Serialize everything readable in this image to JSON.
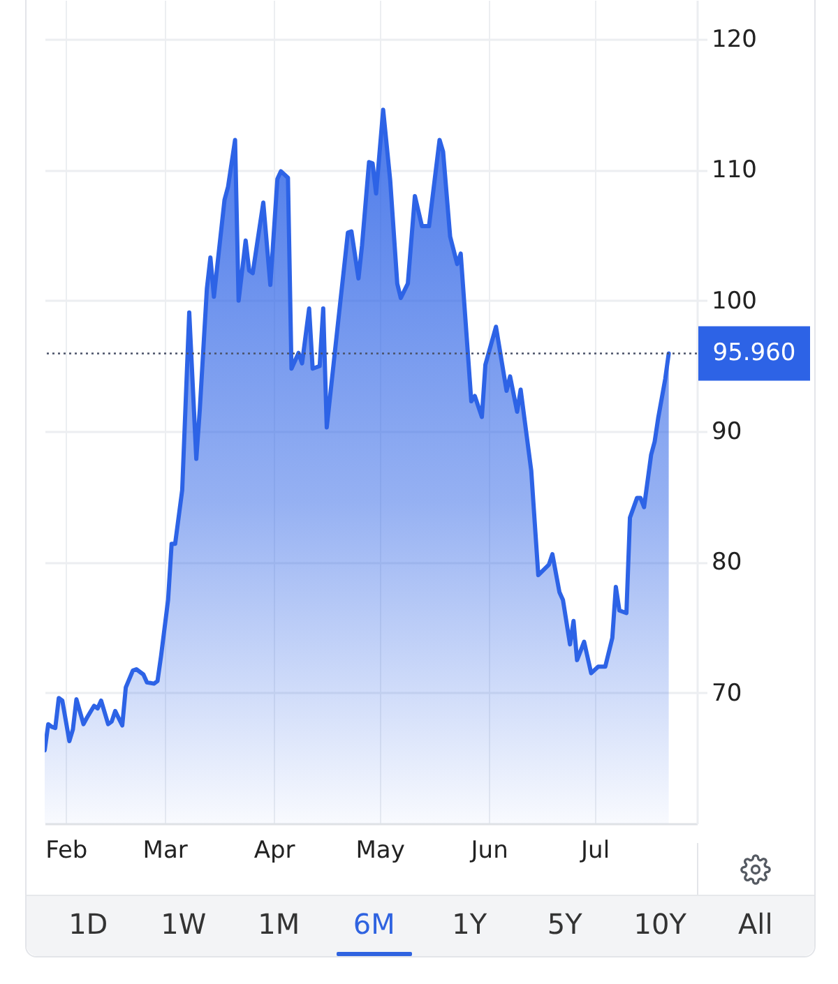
{
  "chart_data": {
    "type": "area",
    "x": [
      "--01-26",
      "--01-27",
      "--01-28",
      "--01-29",
      "--01-30",
      "--01-31",
      "--02-02",
      "--02-03",
      "--02-04",
      "--02-06",
      "--02-07",
      "--02-09",
      "--02-10",
      "--02-11",
      "--02-13",
      "--02-14",
      "--02-15",
      "--02-17",
      "--02-18",
      "--02-20",
      "--02-21",
      "--02-23",
      "--02-24",
      "--02-26",
      "--02-27",
      "--02-28",
      "--03-02",
      "--03-03",
      "--03-04",
      "--03-06",
      "--03-08",
      "--03-10",
      "--03-11",
      "--03-13",
      "--03-14",
      "--03-15",
      "--03-18",
      "--03-19",
      "--03-21",
      "--03-22",
      "--03-24",
      "--03-25",
      "--03-26",
      "--03-29",
      "--03-31",
      "--04-02",
      "--04-03",
      "--04-05",
      "--04-06",
      "--04-08",
      "--04-09",
      "--04-11",
      "--04-12",
      "--04-14",
      "--04-15",
      "--04-16",
      "--04-19",
      "--04-22",
      "--04-23",
      "--04-25",
      "--04-26",
      "--04-28",
      "--04-29",
      "--04-30",
      "--05-02",
      "--05-04",
      "--05-06",
      "--05-07",
      "--05-09",
      "--05-11",
      "--05-13",
      "--05-15",
      "--05-18",
      "--05-19",
      "--05-21",
      "--05-23",
      "--05-24",
      "--05-27",
      "--05-28",
      "--05-30",
      "--05-31",
      "--06-03",
      "--06-06",
      "--06-07",
      "--06-09",
      "--06-10",
      "--06-13",
      "--06-15",
      "--06-18",
      "--06-19",
      "--06-21",
      "--06-22",
      "--06-24",
      "--06-25",
      "--06-26",
      "--06-28",
      "--06-30",
      "--07-02",
      "--07-04",
      "--07-06",
      "--07-07",
      "--07-08",
      "--07-10",
      "--07-11",
      "--07-13",
      "--07-14",
      "--07-15",
      "--07-17",
      "--07-18",
      "--07-19",
      "--07-21",
      "--07-22"
    ],
    "series": [
      {
        "color": "#2d63e6",
        "values": [
          65.6,
          67.6,
          67.4,
          67.3,
          69.6,
          69.4,
          66.3,
          67.2,
          69.5,
          67.6,
          68.1,
          69.0,
          68.8,
          69.4,
          67.6,
          67.8,
          68.6,
          67.5,
          70.4,
          71.7,
          71.8,
          71.4,
          70.8,
          70.7,
          70.9,
          72.8,
          77.1,
          81.4,
          81.4,
          85.5,
          99.1,
          87.9,
          91.7,
          100.9,
          103.3,
          100.3,
          107.7,
          108.7,
          112.3,
          100.0,
          104.6,
          102.3,
          102.1,
          107.5,
          101.2,
          109.3,
          109.9,
          109.4,
          94.8,
          96.0,
          95.2,
          99.4,
          94.8,
          95.0,
          99.4,
          90.3,
          97.8,
          105.2,
          105.3,
          101.7,
          104.2,
          110.6,
          110.5,
          108.2,
          114.6,
          109.2,
          101.3,
          100.2,
          101.3,
          108.0,
          105.7,
          105.7,
          112.3,
          111.4,
          104.9,
          102.8,
          103.6,
          92.3,
          92.7,
          91.1,
          95.1,
          98.0,
          93.1,
          94.2,
          91.5,
          93.2,
          87.0,
          79.0,
          79.8,
          80.6,
          77.7,
          77.1,
          73.7,
          75.5,
          72.5,
          73.9,
          71.5,
          72.0,
          72.0,
          74.2,
          78.1,
          76.3,
          76.1,
          83.4,
          84.9,
          84.9,
          84.2,
          88.2,
          89.2,
          91.0,
          94.0,
          95.96
        ]
      }
    ],
    "xlim": [
      "--01-26",
      "--07-30"
    ],
    "xticks": [
      {
        "value": "--02-01",
        "label": "Feb"
      },
      {
        "value": "--03-01",
        "label": "Mar"
      },
      {
        "value": "--04-01",
        "label": "Apr"
      },
      {
        "value": "--05-01",
        "label": "May"
      },
      {
        "value": "--06-01",
        "label": "Jun"
      },
      {
        "value": "--07-01",
        "label": "Jul"
      }
    ],
    "ylim": [
      60,
      123
    ],
    "yticks": [
      70,
      80,
      90,
      100,
      110,
      120
    ],
    "grid": true,
    "ref_lines": [
      {
        "axis": "y",
        "value": 95.96,
        "label": "95.960",
        "color": "#4a5268",
        "line_style": "dotted"
      }
    ],
    "annotations": [
      "1D",
      "1W",
      "1M",
      "6M",
      "1Y",
      "5Y",
      "10Y",
      "All"
    ]
  }
}
